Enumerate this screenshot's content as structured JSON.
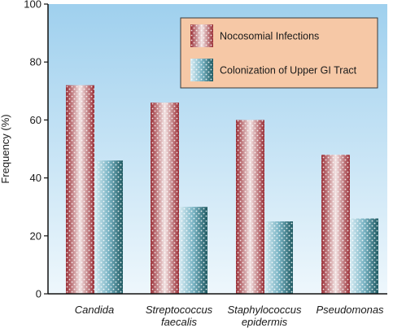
{
  "chart_data": {
    "type": "bar",
    "ylabel": "Frequency (%)",
    "ylim": [
      0,
      100
    ],
    "yticks": [
      0,
      20,
      40,
      60,
      80,
      100
    ],
    "categories": [
      [
        "Candida"
      ],
      [
        "Streptococcus",
        "faecalis"
      ],
      [
        "Staphylococcus",
        "epidermis"
      ],
      [
        "Pseudomonas"
      ]
    ],
    "series": [
      {
        "name": "Nocosomial Infections",
        "values": [
          72,
          66,
          60,
          48
        ],
        "color": "#a8343c"
      },
      {
        "name": "Colonization of Upper GI Tract",
        "values": [
          46,
          30,
          25,
          26
        ],
        "color": "#2a6a72"
      }
    ],
    "legend": "top-right",
    "grid": false,
    "colors": {
      "background_top": "#9fd0ee",
      "background_bottom": "#eaf5fb",
      "legend_fill": "#f6c8a6"
    }
  }
}
